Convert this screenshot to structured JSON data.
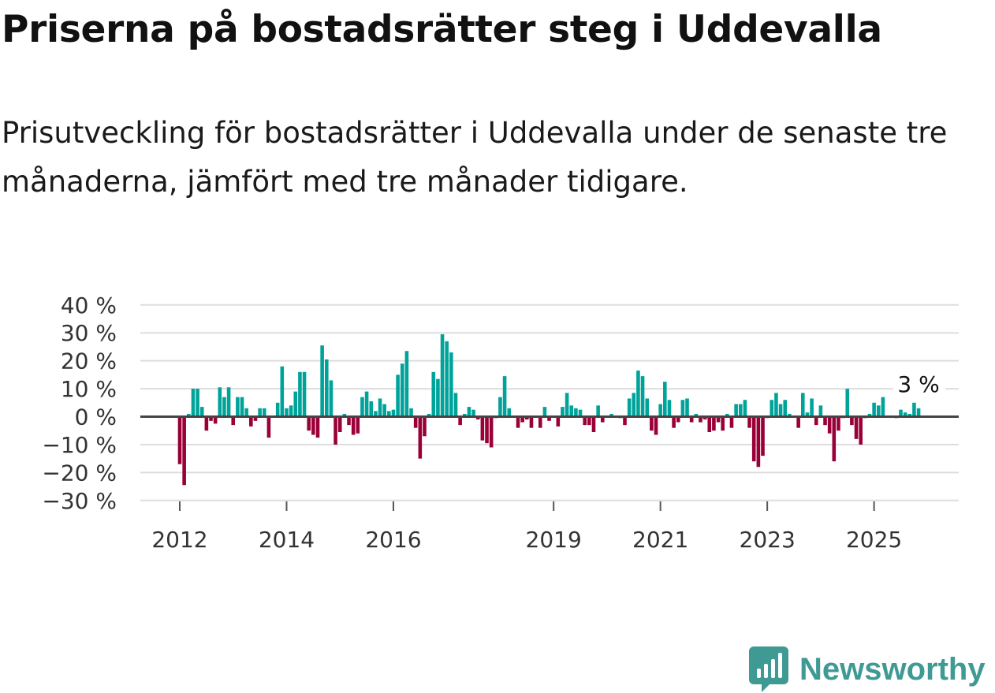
{
  "header": {
    "title": "Priserna på bostadsrätter steg i Uddevalla",
    "subtitle": "Prisutveckling för bostadsrätter i Uddevalla under de senaste tre månaderna, jämfört med tre månader tidigare."
  },
  "brand": {
    "name": "Newsworthy",
    "icon": "bar-chart-bubble-icon",
    "color": "#3f9a94"
  },
  "colors": {
    "positive": "#00a39a",
    "negative": "#990038",
    "grid": "#dddddd",
    "axis": "#444444"
  },
  "chart_data": {
    "type": "bar",
    "title": "Priserna på bostadsrätter steg i Uddevalla",
    "xlabel": "",
    "ylabel": "",
    "ylim": [
      -30,
      40
    ],
    "yticks": [
      40,
      30,
      20,
      10,
      0,
      -10,
      -20,
      -30
    ],
    "ytick_labels": [
      "40 %",
      "30 %",
      "20 %",
      "10 %",
      "0 %",
      "−10 %",
      "−20 %",
      "−30 %"
    ],
    "xticks": [
      2012,
      2014,
      2016,
      2019,
      2021,
      2023,
      2025
    ],
    "xtick_labels": [
      "2012",
      "2014",
      "2016",
      "2019",
      "2021",
      "2023",
      "2025"
    ],
    "start": "2012-01",
    "interval": "month",
    "grid": true,
    "annotation": {
      "text": "3 %",
      "index": 166
    },
    "values": [
      -17,
      -24.5,
      1,
      10,
      10,
      3.5,
      -5,
      -1.5,
      -2.5,
      10.5,
      7,
      10.5,
      -3,
      7,
      7,
      3,
      -3.5,
      -1.5,
      3,
      3,
      -7.5,
      0,
      5,
      18,
      3,
      4,
      9,
      16,
      16,
      -5,
      -6.5,
      -7.5,
      25.5,
      20.5,
      13,
      -10,
      -5.5,
      1,
      -3,
      -6.5,
      -6,
      7,
      9,
      5.5,
      2,
      6.5,
      4.5,
      2,
      2.5,
      15,
      19,
      23.5,
      3,
      -4,
      -15,
      -7,
      1,
      16,
      13.5,
      29.5,
      27,
      23,
      8.5,
      -3,
      1,
      3.5,
      2.5,
      -1,
      -8.5,
      -9.5,
      -11,
      -0.5,
      7,
      14.5,
      3,
      0,
      -4,
      -2,
      -1,
      -4,
      0,
      -4,
      3.5,
      -1.5,
      0,
      -3.5,
      3.5,
      8.5,
      4,
      3,
      2.5,
      -3,
      -3,
      -5.5,
      4,
      -2,
      0,
      1,
      0,
      -0.5,
      -3,
      6.5,
      8.5,
      16.5,
      14.5,
      6.5,
      -5,
      -6.5,
      4.5,
      12.5,
      6,
      -4,
      -2,
      6,
      6.5,
      -2,
      1,
      -2,
      -1,
      -5.5,
      -5,
      -2,
      -5,
      1,
      -4,
      4.5,
      4.5,
      6,
      -4,
      -16,
      -18,
      -14,
      -0.5,
      6,
      8.5,
      4.5,
      6,
      1,
      0,
      -4,
      8.5,
      1.5,
      6.5,
      -3,
      4,
      -3,
      -6,
      -16,
      -5,
      -0.5,
      10,
      -3,
      -8,
      -10,
      -0.5,
      1,
      5,
      4,
      7,
      0,
      0,
      -0.5,
      2.5,
      1.5,
      1,
      5,
      3
    ]
  }
}
